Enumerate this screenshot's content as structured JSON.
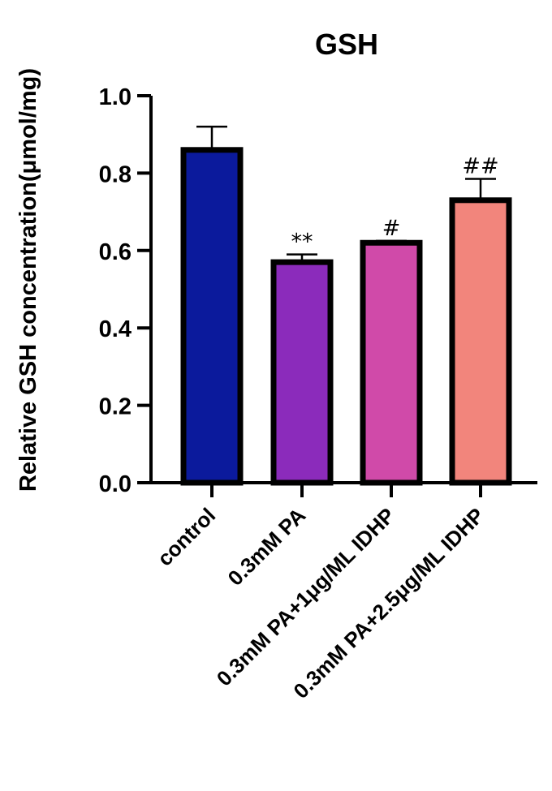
{
  "chart_data": {
    "type": "bar",
    "title": "GSH",
    "xlabel": "",
    "ylabel": "Relative GSH concentration(μmol/mg)",
    "ylim": [
      0,
      1.0
    ],
    "yticks": [
      0.0,
      0.2,
      0.4,
      0.6,
      0.8,
      1.0
    ],
    "ytick_labels": [
      "0.0",
      "0.2",
      "0.4",
      "0.6",
      "0.8",
      "1.0"
    ],
    "grid": false,
    "legend": null,
    "categories": [
      "control",
      "0.3mM PA",
      "0.3mM PA+1μg/ML IDHP",
      "0.3mM PA+2.5μg/ML IDHP"
    ],
    "values": [
      0.86,
      0.57,
      0.62,
      0.73
    ],
    "errors": [
      0.06,
      0.02,
      0.005,
      0.055
    ],
    "annotations": [
      "",
      "**",
      "#",
      "##"
    ],
    "colors": [
      "#0b1a9c",
      "#8b2bbb",
      "#d04aa9",
      "#f2857c"
    ]
  }
}
